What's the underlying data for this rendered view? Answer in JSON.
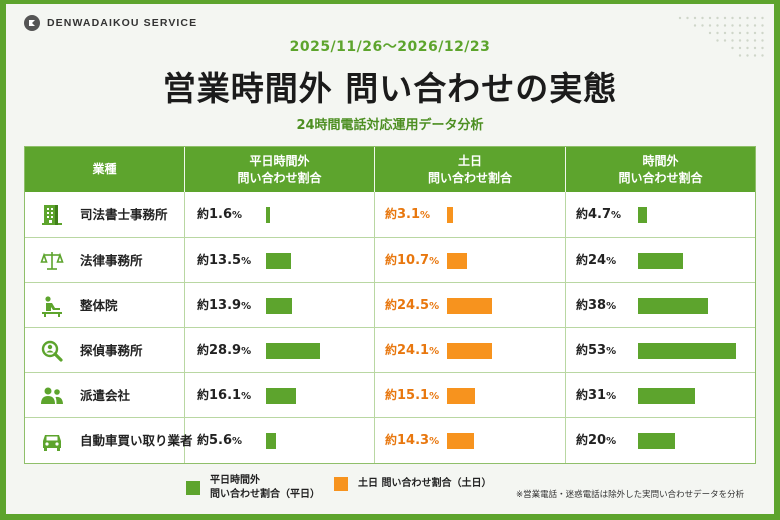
{
  "brand": {
    "name": "DENWADAIKOU SERVICE"
  },
  "header": {
    "period": "2025/11/26〜2026/12/23",
    "title": "営業時間外 問い合わせの実態",
    "subtitle": "24時間電話対応運用データ分析"
  },
  "table": {
    "columns": [
      {
        "label": "業種",
        "sub": ""
      },
      {
        "label": "平日時間外",
        "sub": "問い合わせ割合"
      },
      {
        "label": "土日",
        "sub": "問い合わせ割合"
      },
      {
        "label": "時間外",
        "sub": "問い合わせ割合"
      }
    ],
    "rows": [
      {
        "industry": "司法書士事務所",
        "icon": "building-icon",
        "weekday": "1.6",
        "weekend": "3.1",
        "afterhours": "4.7"
      },
      {
        "industry": "法律事務所",
        "icon": "scales-icon",
        "weekday": "13.5",
        "weekend": "10.7",
        "afterhours": "24"
      },
      {
        "industry": "整体院",
        "icon": "massage-icon",
        "weekday": "13.9",
        "weekend": "24.5",
        "afterhours": "38"
      },
      {
        "industry": "探偵事務所",
        "icon": "magnifier-person-icon",
        "weekday": "28.9",
        "weekend": "24.1",
        "afterhours": "53"
      },
      {
        "industry": "派遣会社",
        "icon": "people-icon",
        "weekday": "16.1",
        "weekend": "15.1",
        "afterhours": "31"
      },
      {
        "industry": "自動車買い取り業者",
        "icon": "car-icon",
        "weekday": "5.6",
        "weekend": "14.3",
        "afterhours": "20"
      }
    ],
    "prefix": "約",
    "unit": "%"
  },
  "chart_data": {
    "type": "bar",
    "categories": [
      "司法書士事務所",
      "法律事務所",
      "整体院",
      "探偵事務所",
      "派遣会社",
      "自動車買い取り業者"
    ],
    "series": [
      {
        "name": "平日時間外 問い合わせ割合（平日）",
        "values": [
          1.6,
          13.5,
          13.9,
          28.9,
          16.1,
          5.6
        ],
        "color": "#5da42d"
      },
      {
        "name": "土日 問い合わせ割合（土日）",
        "values": [
          3.1,
          10.7,
          24.5,
          24.1,
          15.1,
          14.3
        ],
        "color": "#f7931e"
      },
      {
        "name": "時間外 問い合わせ割合",
        "values": [
          4.7,
          24,
          38,
          53,
          31,
          20
        ],
        "color": "#5da42d"
      }
    ]
  },
  "legend": {
    "weekday_line1": "平日時間外",
    "weekday_line2": "問い合わせ割合（平日）",
    "weekend": "土日 問い合わせ割合（土日）"
  },
  "note": "※営業電話・迷惑電話は除外した実問い合わせデータを分析",
  "colors": {
    "green": "#5da42d",
    "orange": "#f7931e",
    "orange_text": "#e8770e"
  }
}
